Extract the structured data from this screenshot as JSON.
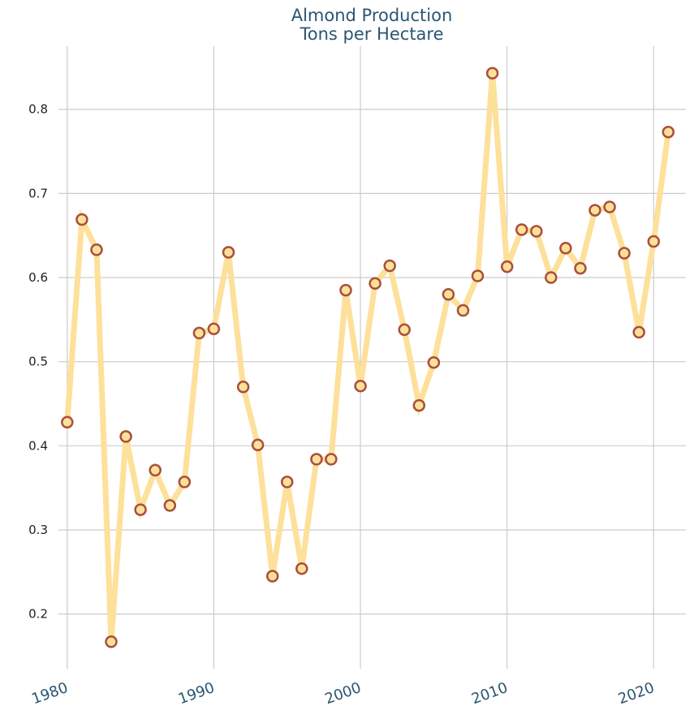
{
  "chart_data": {
    "type": "line",
    "title": "Almond Production",
    "subtitle": "Tons per Hectare",
    "xlabel": "",
    "ylabel": "",
    "x": [
      1980,
      1981,
      1982,
      1983,
      1984,
      1985,
      1986,
      1987,
      1988,
      1989,
      1990,
      1991,
      1992,
      1993,
      1994,
      1995,
      1996,
      1997,
      1998,
      1999,
      2000,
      2001,
      2002,
      2003,
      2004,
      2005,
      2006,
      2007,
      2008,
      2009,
      2010,
      2011,
      2012,
      2013,
      2014,
      2015,
      2016,
      2017,
      2018,
      2019,
      2020,
      2021
    ],
    "series": [
      {
        "name": "",
        "values": [
          0.428,
          0.669,
          0.633,
          0.167,
          0.411,
          0.324,
          0.371,
          0.329,
          0.357,
          0.534,
          0.539,
          0.63,
          0.47,
          0.401,
          0.245,
          0.357,
          0.254,
          0.384,
          0.384,
          0.585,
          0.471,
          0.593,
          0.614,
          0.538,
          0.448,
          0.499,
          0.58,
          0.561,
          0.602,
          0.843,
          0.613,
          0.657,
          0.655,
          0.6,
          0.635,
          0.611,
          0.68,
          0.684,
          0.629,
          0.535,
          0.643,
          0.773
        ]
      }
    ],
    "xticks": [
      "1980",
      "1990",
      "2000",
      "2010",
      "2020"
    ],
    "xtick_values": [
      1980,
      1990,
      2000,
      2010,
      2020
    ],
    "yticks": [
      "0.2",
      "0.3",
      "0.4",
      "0.5",
      "0.6",
      "0.7",
      "0.8"
    ],
    "ytick_values": [
      0.2,
      0.3,
      0.4,
      0.5,
      0.6,
      0.7,
      0.8
    ],
    "xlim": [
      1979.4,
      2022.2
    ],
    "ylim": [
      0.135,
      0.875
    ],
    "grid": true,
    "legend": "none",
    "colors": {
      "line": "#fde09a",
      "marker_fill": "#fde09a",
      "marker_edge": "#a9503b",
      "title": "#2a5673",
      "grid": "#cccccc"
    }
  }
}
